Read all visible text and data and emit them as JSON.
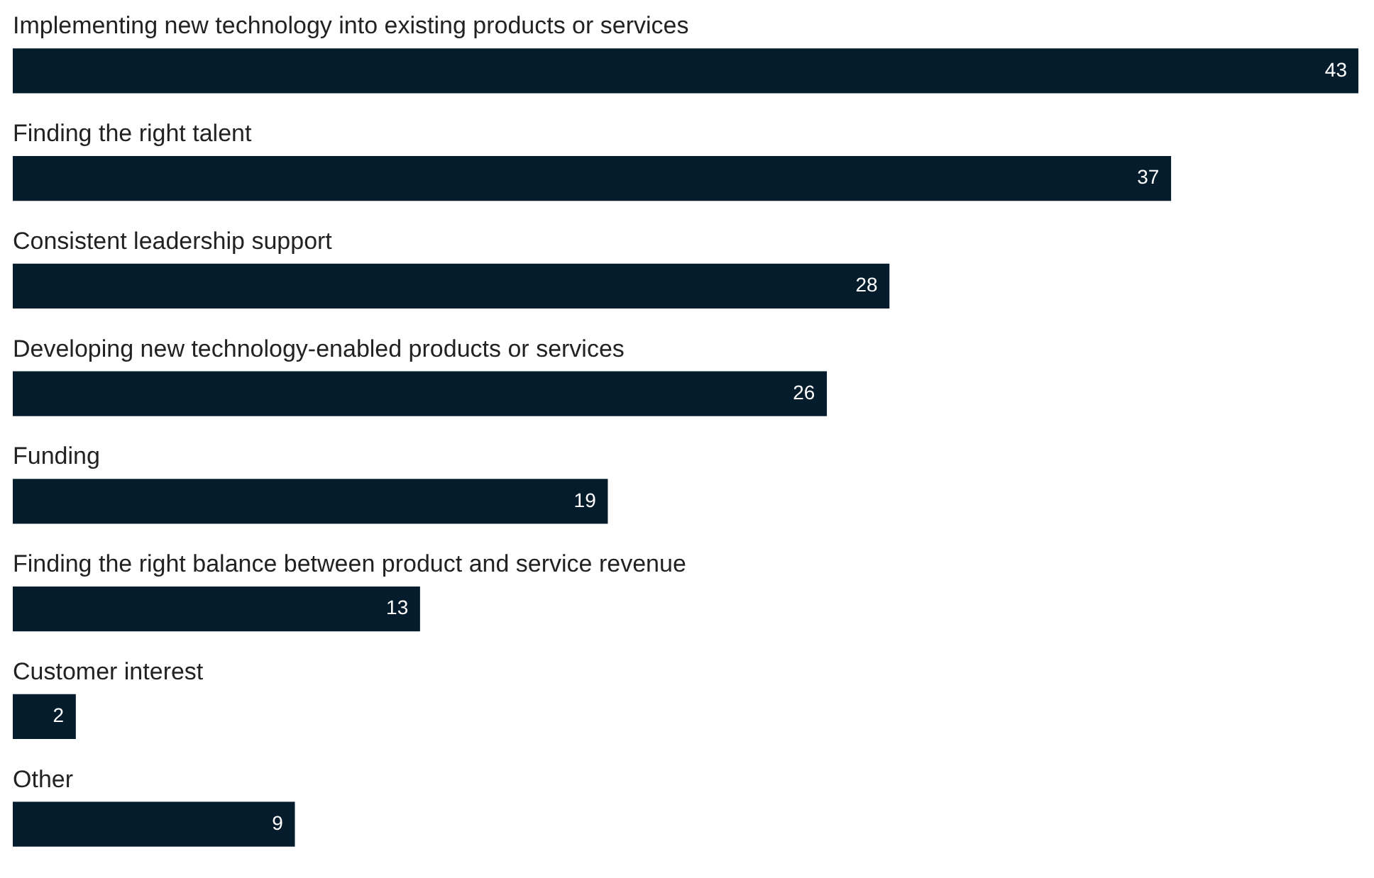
{
  "chart_data": {
    "type": "bar",
    "orientation": "horizontal",
    "categories": [
      "Implementing new technology into existing products or services",
      "Finding the right talent",
      "Consistent leadership support",
      "Developing new technology-enabled products or services",
      "Funding",
      "Finding the right balance between product and service revenue",
      "Customer interest",
      "Other"
    ],
    "values": [
      43,
      37,
      28,
      26,
      19,
      13,
      2,
      9
    ],
    "color": "#051c2c",
    "data_labels": true
  }
}
